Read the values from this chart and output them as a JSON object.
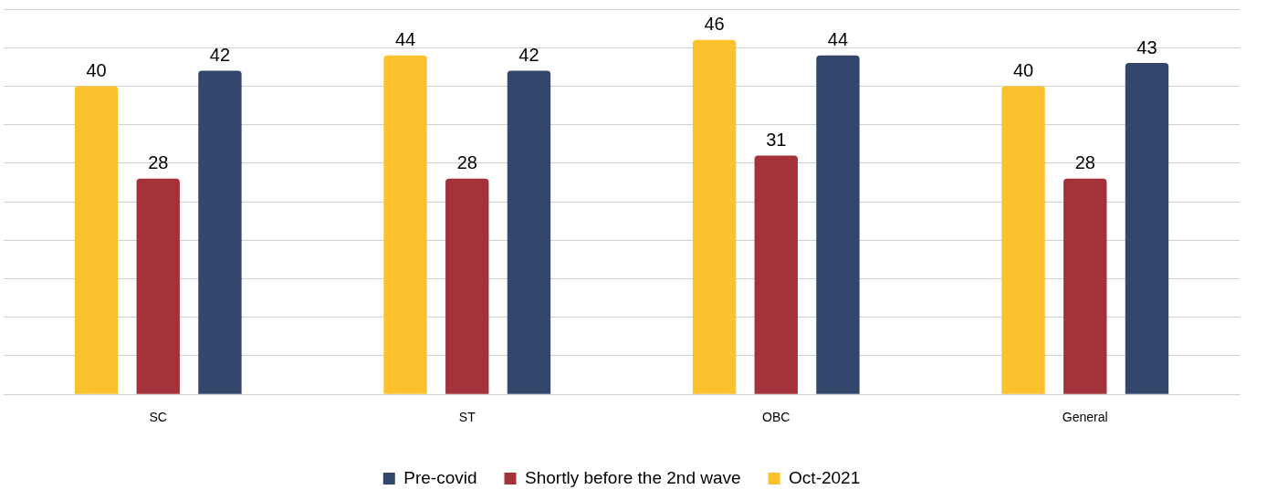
{
  "chart_data": {
    "type": "bar",
    "categories": [
      "SC",
      "ST",
      "OBC",
      "General"
    ],
    "series": [
      {
        "name": "Oct-2021",
        "color": "#fcc22d",
        "values": [
          40,
          44,
          46,
          40
        ]
      },
      {
        "name": "Shortly before the 2nd wave",
        "color": "#a3323a",
        "values": [
          28,
          28,
          31,
          28
        ]
      },
      {
        "name": "Pre-covid",
        "color": "#33466b",
        "values": [
          42,
          42,
          44,
          43
        ]
      }
    ],
    "ylim": [
      0,
      50
    ],
    "yticks": [
      {
        "value": 0,
        "label": null
      },
      {
        "value": 5,
        "label": null
      },
      {
        "value": 10,
        "label": null
      },
      {
        "value": 15,
        "label": null
      },
      {
        "value": 20,
        "label": null
      },
      {
        "value": 25,
        "label": null
      },
      {
        "value": 30,
        "label": null
      },
      {
        "value": 35,
        "label": null
      },
      {
        "value": 40,
        "label": null
      },
      {
        "value": 45,
        "label": null
      },
      {
        "value": 50,
        "label": null
      }
    ],
    "grid": "y",
    "legend": "bottom",
    "tick_labels": "x",
    "data_labels": true
  }
}
